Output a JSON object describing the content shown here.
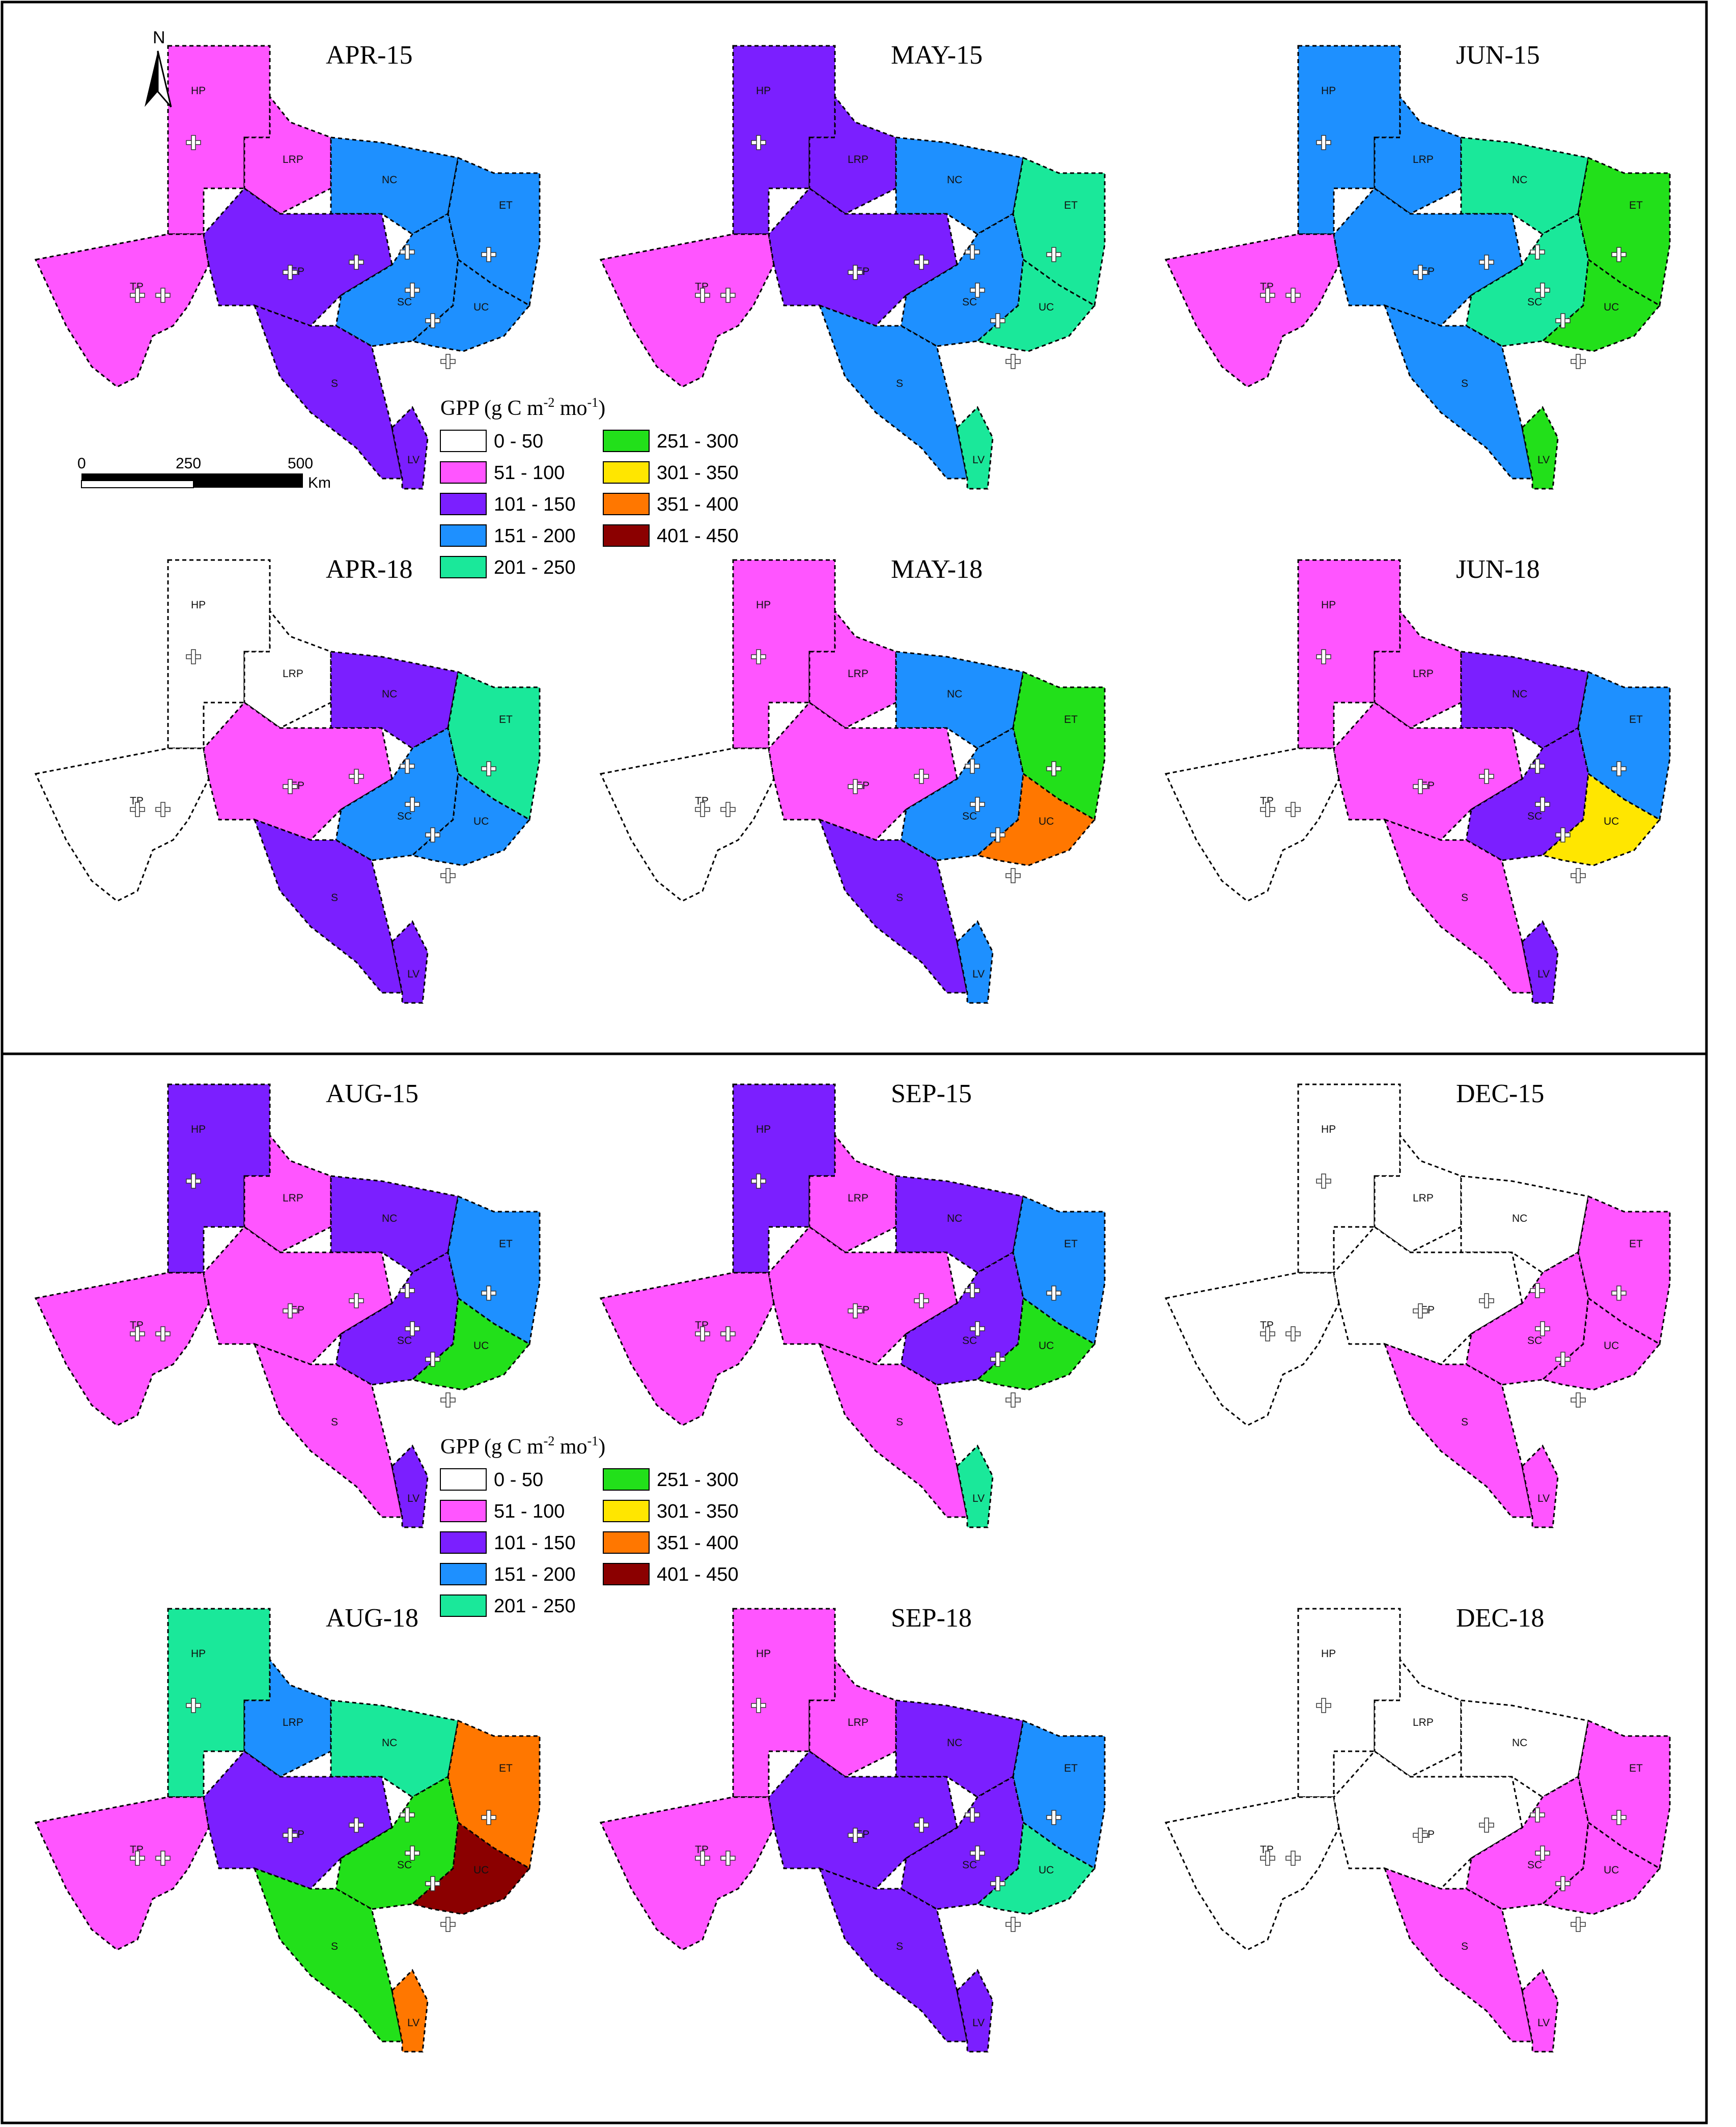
{
  "legend": {
    "title_prefix": "GPP (g C m",
    "title_exp1": "-2",
    "title_mid": " mo",
    "title_exp2": "-1",
    "title_suffix": ")",
    "classes": [
      {
        "label": "0 - 50",
        "color": "#ffffff"
      },
      {
        "label": "51 - 100",
        "color": "#ff55ff"
      },
      {
        "label": "101 - 150",
        "color": "#7b1fff"
      },
      {
        "label": "151 - 200",
        "color": "#1e90ff"
      },
      {
        "label": "201 - 250",
        "color": "#1ae89a"
      },
      {
        "label": "251 - 300",
        "color": "#22e01a"
      },
      {
        "label": "301 - 350",
        "color": "#ffe600"
      },
      {
        "label": "351 - 400",
        "color": "#ff7700"
      },
      {
        "label": "401 - 450",
        "color": "#8b0000"
      }
    ]
  },
  "scale_bar": {
    "ticks": [
      "0",
      "250",
      "500"
    ],
    "unit": "Km"
  },
  "north_arrow": {
    "label": "N",
    "icon": "north-arrow-icon"
  },
  "region_labels": [
    "HP",
    "LRP",
    "NC",
    "ET",
    "TP",
    "EP",
    "SC",
    "UC",
    "S",
    "LV"
  ],
  "panels": [
    {
      "label": "APR-15",
      "regions": {
        "HP": "pink",
        "LRP": "pink",
        "TP": "pink",
        "NC": "blue",
        "ET": "blue",
        "EP": "purple",
        "SC": "blue",
        "UC": "blue",
        "S": "purple",
        "LV": "purple"
      }
    },
    {
      "label": "MAY-15",
      "regions": {
        "HP": "purple",
        "LRP": "purple",
        "TP": "pink",
        "NC": "blue",
        "ET": "seagreen",
        "EP": "purple",
        "SC": "blue",
        "UC": "seagreen",
        "S": "blue",
        "LV": "seagreen"
      }
    },
    {
      "label": "JUN-15",
      "regions": {
        "HP": "blue",
        "LRP": "blue",
        "TP": "pink",
        "NC": "seagreen",
        "ET": "green",
        "EP": "blue",
        "SC": "seagreen",
        "UC": "green",
        "S": "blue",
        "LV": "green"
      }
    },
    {
      "label": "APR-18",
      "regions": {
        "HP": "white",
        "LRP": "white",
        "TP": "white",
        "NC": "purple",
        "ET": "seagreen",
        "EP": "pink",
        "SC": "blue",
        "UC": "blue",
        "S": "purple",
        "LV": "purple"
      }
    },
    {
      "label": "MAY-18",
      "regions": {
        "HP": "pink",
        "LRP": "pink",
        "TP": "white",
        "NC": "blue",
        "ET": "green",
        "EP": "pink",
        "SC": "blue",
        "UC": "orange",
        "S": "purple",
        "LV": "blue"
      }
    },
    {
      "label": "JUN-18",
      "regions": {
        "HP": "pink",
        "LRP": "pink",
        "TP": "white",
        "NC": "purple",
        "ET": "blue",
        "EP": "pink",
        "SC": "purple",
        "UC": "yellow",
        "S": "pink",
        "LV": "purple"
      }
    },
    {
      "label": "AUG-15",
      "regions": {
        "HP": "purple",
        "LRP": "pink",
        "TP": "pink",
        "NC": "purple",
        "ET": "blue",
        "EP": "pink",
        "SC": "purple",
        "UC": "green",
        "S": "pink",
        "LV": "purple"
      }
    },
    {
      "label": "SEP-15",
      "regions": {
        "HP": "purple",
        "LRP": "pink",
        "TP": "pink",
        "NC": "purple",
        "ET": "blue",
        "EP": "pink",
        "SC": "purple",
        "UC": "green",
        "S": "pink",
        "LV": "seagreen"
      }
    },
    {
      "label": "DEC-15",
      "regions": {
        "HP": "white",
        "LRP": "white",
        "TP": "white",
        "NC": "white",
        "ET": "pink",
        "EP": "white",
        "SC": "pink",
        "UC": "pink",
        "S": "pink",
        "LV": "pink"
      }
    },
    {
      "label": "AUG-18",
      "regions": {
        "HP": "seagreen",
        "LRP": "blue",
        "TP": "pink",
        "NC": "seagreen",
        "ET": "orange",
        "EP": "purple",
        "SC": "green",
        "UC": "darkred",
        "S": "green",
        "LV": "orange"
      }
    },
    {
      "label": "SEP-18",
      "regions": {
        "HP": "pink",
        "LRP": "pink",
        "TP": "pink",
        "NC": "purple",
        "ET": "blue",
        "EP": "purple",
        "SC": "purple",
        "UC": "seagreen",
        "S": "purple",
        "LV": "purple"
      }
    },
    {
      "label": "DEC-18",
      "regions": {
        "HP": "white",
        "LRP": "white",
        "TP": "white",
        "NC": "white",
        "ET": "pink",
        "EP": "white",
        "SC": "pink",
        "UC": "pink",
        "S": "pink",
        "LV": "pink"
      }
    }
  ],
  "colors": {
    "white": "#ffffff",
    "pink": "#ff55ff",
    "purple": "#7b1fff",
    "blue": "#1e90ff",
    "seagreen": "#1ae89a",
    "green": "#22e01a",
    "yellow": "#ffe600",
    "orange": "#ff7700",
    "darkred": "#8b0000"
  }
}
